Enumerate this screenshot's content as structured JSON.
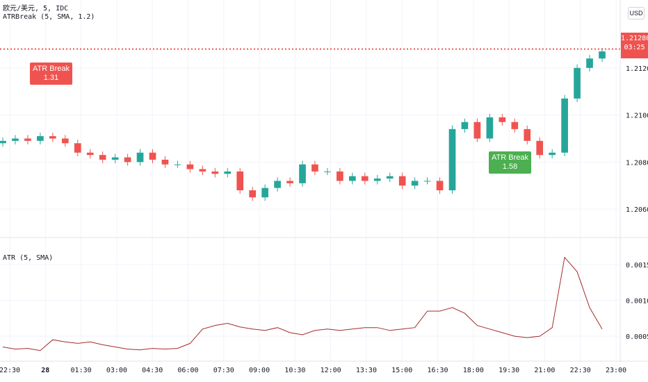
{
  "legend": {
    "symbol": "欧元/美元, 5, IDC",
    "indicator": "ATRBreak (5, SMA, 1.2)",
    "sub_indicator": "ATR (5, SMA)"
  },
  "currency_button": "USD",
  "last_price": {
    "value": "1.21280",
    "countdown": "03:25"
  },
  "signals": {
    "sell": {
      "label": "ATR Break",
      "value": "1.31"
    },
    "buy": {
      "label": "ATR Break",
      "value": "1.58"
    }
  },
  "colors": {
    "up": "#26a69a",
    "down": "#ef5350",
    "atr_line": "#a52a2a",
    "signal_sell": "#ef5350",
    "signal_buy": "#4caf50",
    "grid": "#f0f3fa"
  },
  "chart_data": [
    {
      "type": "candlestick",
      "title": "欧元/美元, 5, IDC",
      "y_ticks": [
        "1.21200",
        "1.21000",
        "1.20800",
        "1.20600"
      ],
      "ylim": [
        1.205,
        1.214
      ],
      "last_value": 1.2128,
      "x": [
        0,
        1,
        2,
        3,
        4,
        5,
        6,
        7,
        8,
        9,
        10,
        11,
        12,
        13,
        14,
        15,
        16,
        17,
        18,
        19,
        20,
        21,
        22,
        23,
        24,
        25,
        26,
        27,
        28,
        29,
        30,
        31,
        32,
        33,
        34,
        35,
        36,
        37,
        38,
        39,
        40,
        41,
        42,
        43,
        44,
        45,
        46,
        47,
        48
      ],
      "close": [
        1.2089,
        1.209,
        1.2089,
        1.2091,
        1.209,
        1.2088,
        1.2084,
        1.2083,
        1.2081,
        1.2082,
        1.208,
        1.2084,
        1.2081,
        1.2079,
        1.2079,
        1.2077,
        1.2076,
        1.2075,
        1.2076,
        1.2068,
        1.2065,
        1.2069,
        1.2072,
        1.2071,
        1.2079,
        1.2076,
        1.2076,
        1.2072,
        1.2074,
        1.2072,
        1.2073,
        1.2074,
        1.207,
        1.2072,
        1.2072,
        1.2068,
        1.2094,
        1.2097,
        1.209,
        1.2099,
        1.2097,
        1.2094,
        1.2089,
        1.2083,
        1.2084,
        1.2107,
        1.212,
        1.2124,
        1.2127
      ],
      "signals": [
        {
          "x": 8,
          "label": "ATR Break",
          "value": "1.31",
          "side": "sell"
        },
        {
          "x": 44,
          "label": "ATR Break",
          "value": "1.58",
          "side": "buy"
        }
      ]
    },
    {
      "type": "line",
      "title": "ATR (5, SMA)",
      "y_ticks": [
        "0.00150",
        "0.00100",
        "0.00050"
      ],
      "ylim": [
        0.0002,
        0.0018
      ],
      "x": [
        0,
        1,
        2,
        3,
        4,
        5,
        6,
        7,
        8,
        9,
        10,
        11,
        12,
        13,
        14,
        15,
        16,
        17,
        18,
        19,
        20,
        21,
        22,
        23,
        24,
        25,
        26,
        27,
        28,
        29,
        30,
        31,
        32,
        33,
        34,
        35,
        36,
        37,
        38,
        39,
        40,
        41,
        42,
        43,
        44,
        45,
        46,
        47,
        48
      ],
      "values": [
        0.00035,
        0.00032,
        0.00033,
        0.0003,
        0.00045,
        0.00042,
        0.0004,
        0.00042,
        0.00038,
        0.00035,
        0.00032,
        0.00031,
        0.00033,
        0.00032,
        0.00033,
        0.0004,
        0.0006,
        0.00065,
        0.00068,
        0.00063,
        0.0006,
        0.00058,
        0.00062,
        0.00055,
        0.00052,
        0.00058,
        0.0006,
        0.00058,
        0.0006,
        0.00062,
        0.00062,
        0.00058,
        0.0006,
        0.00062,
        0.00085,
        0.00085,
        0.0009,
        0.00082,
        0.00065,
        0.0006,
        0.00055,
        0.0005,
        0.00048,
        0.0005,
        0.00062,
        0.0016,
        0.0014,
        0.0009,
        0.0006
      ]
    }
  ],
  "x_axis_labels": [
    "22:30",
    "28",
    "01:30",
    "03:00",
    "04:30",
    "06:00",
    "07:30",
    "09:00",
    "10:30",
    "12:00",
    "13:30",
    "15:00",
    "16:30",
    "18:00",
    "19:30",
    "21:00",
    "22:30",
    "23:00"
  ]
}
